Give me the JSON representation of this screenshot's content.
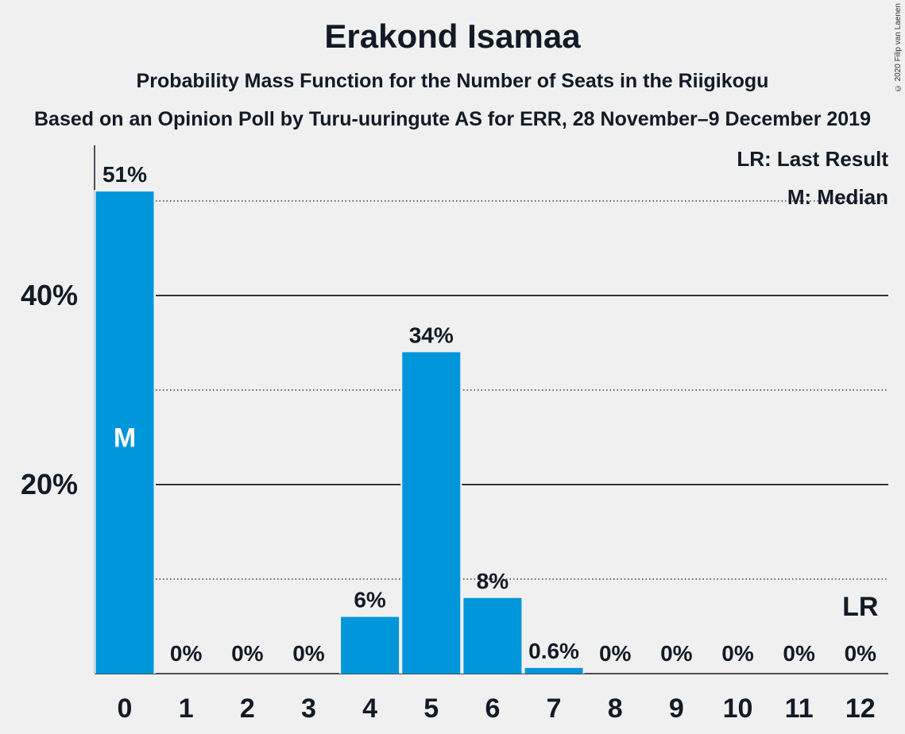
{
  "header": {
    "title": "Erakond Isamaa",
    "subtitle": "Probability Mass Function for the Number of Seats in the Riigikogu",
    "source": "Based on an Opinion Poll by Turu-uuringute AS for ERR, 28 November–9 December 2019",
    "copyright": "© 2020 Filip van Laenen"
  },
  "legend": {
    "last_result": "LR: Last Result",
    "median": "M: Median"
  },
  "colors": {
    "bar": "#0096db",
    "text": "#111a26",
    "background": "#f0f0f0"
  },
  "chart_data": {
    "type": "bar",
    "categories": [
      "0",
      "1",
      "2",
      "3",
      "4",
      "5",
      "6",
      "7",
      "8",
      "9",
      "10",
      "11",
      "12"
    ],
    "values": [
      51,
      0,
      0,
      0,
      6,
      34,
      8,
      0.6,
      0,
      0,
      0,
      0,
      0
    ],
    "labels": [
      "51%",
      "0%",
      "0%",
      "0%",
      "6%",
      "34%",
      "8%",
      "0.6%",
      "0%",
      "0%",
      "0%",
      "0%",
      "0%"
    ],
    "yticks": [
      {
        "value": 20,
        "label": "20%"
      },
      {
        "value": 40,
        "label": "40%"
      }
    ],
    "minor_gridlines": [
      10,
      30,
      50
    ],
    "ylim": [
      0,
      55
    ],
    "median_category": "0",
    "median_marker": "M",
    "last_result_category": "12",
    "last_result_marker": "LR"
  }
}
